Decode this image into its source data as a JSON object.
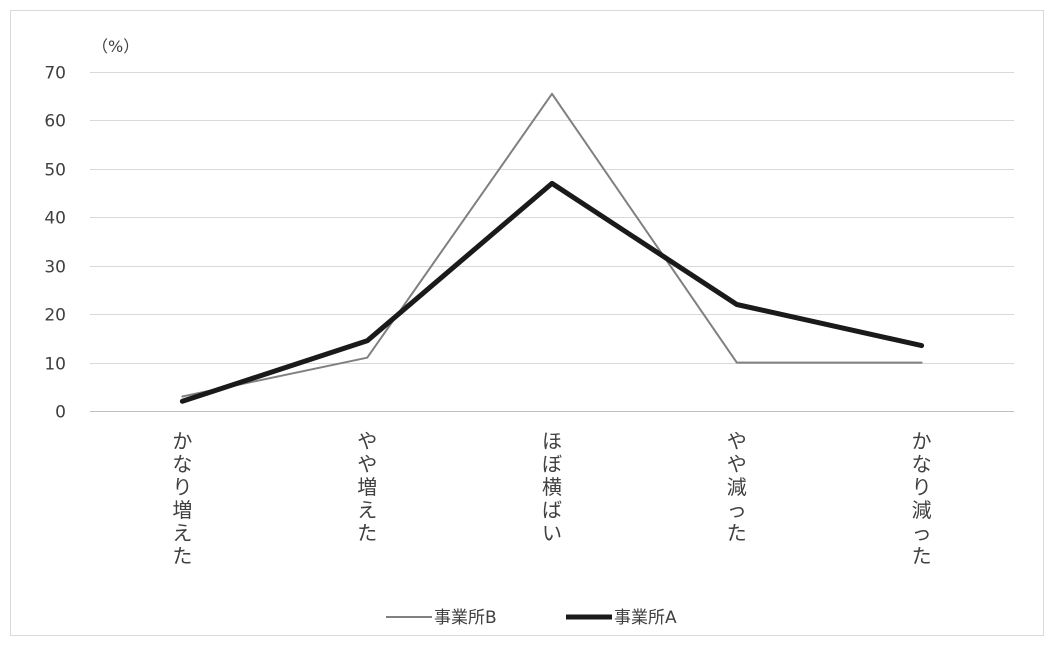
{
  "chart_data": {
    "type": "line",
    "title": "",
    "xlabel": "",
    "ylabel": "",
    "y_unit": "（%）",
    "categories": [
      "かなり増えた",
      "やや増えた",
      "ほぼ横ばい",
      "やや減った",
      "かなり減った"
    ],
    "ylim": [
      0,
      70
    ],
    "yticks": [
      0,
      10,
      20,
      30,
      40,
      50,
      60,
      70
    ],
    "grid": true,
    "legend_position": "bottom",
    "series": [
      {
        "name": "事業所B",
        "values": [
          3,
          11,
          65.5,
          10,
          10
        ],
        "color": "#808080"
      },
      {
        "name": "事業所A",
        "values": [
          2,
          14.5,
          47,
          22,
          13.5
        ],
        "color": "#1a1a1a"
      }
    ]
  }
}
